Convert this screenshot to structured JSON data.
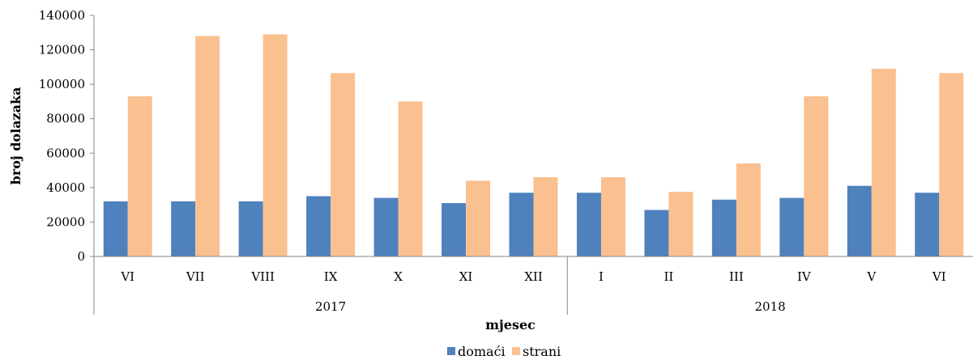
{
  "chart_data": {
    "type": "bar",
    "title": "",
    "xlabel": "mjesec",
    "ylabel": "broj dolazaka",
    "ylim": [
      0,
      140000
    ],
    "y_ticks": [
      0,
      20000,
      40000,
      60000,
      80000,
      100000,
      120000,
      140000
    ],
    "categories": [
      "VI",
      "VII",
      "VIII",
      "IX",
      "X",
      "XI",
      "XII",
      "I",
      "II",
      "III",
      "IV",
      "V",
      "VI"
    ],
    "groups": [
      {
        "label": "2017",
        "count": 7
      },
      {
        "label": "2018",
        "count": 6
      }
    ],
    "series": [
      {
        "name": "domaći",
        "color": "#4f81bd",
        "values": [
          32000,
          32000,
          32000,
          35000,
          34000,
          31000,
          37000,
          37000,
          27000,
          33000,
          34000,
          41000,
          37000
        ]
      },
      {
        "name": "strani",
        "color": "#fac090",
        "values": [
          93000,
          128000,
          129000,
          106500,
          90000,
          44000,
          46000,
          46000,
          37500,
          54000,
          93000,
          109000,
          106500
        ]
      }
    ],
    "grid": false,
    "legend": "bottom-center"
  }
}
